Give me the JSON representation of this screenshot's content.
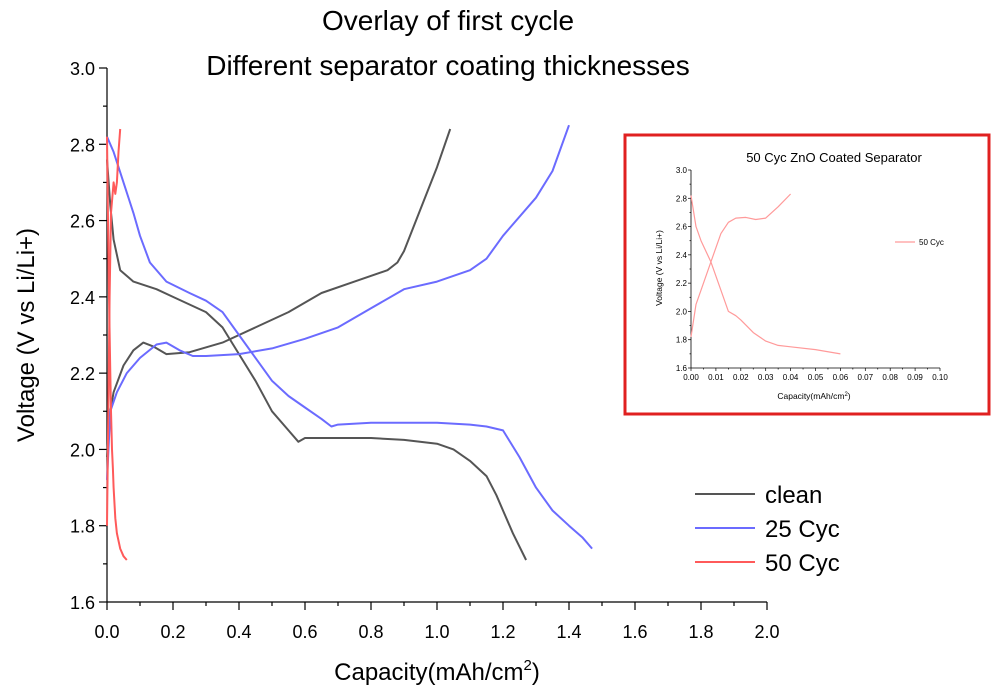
{
  "chart_data": [
    {
      "type": "line",
      "title": "Overlay of first cycle",
      "subtitle": "Different separator coating thicknesses",
      "xlabel": "Capacity(mAh/cm",
      "xlabel_sup": "2",
      "xlabel_end": ")",
      "ylabel": "Voltage (V vs Li/Li+)",
      "xlim": [
        0,
        2.0
      ],
      "ylim": [
        1.6,
        3.0
      ],
      "xticks": [
        "0.0",
        "0.2",
        "0.4",
        "0.6",
        "0.8",
        "1.0",
        "1.2",
        "1.4",
        "1.6",
        "1.8",
        "2.0"
      ],
      "yticks": [
        "1.6",
        "1.8",
        "2.0",
        "2.2",
        "2.4",
        "2.6",
        "2.8",
        "3.0"
      ],
      "legend_position": "bottom-right",
      "series": [
        {
          "name": "clean",
          "color": "#555555",
          "segments": [
            [
              [
                0.0,
                2.76
              ],
              [
                0.01,
                2.64
              ],
              [
                0.02,
                2.55
              ],
              [
                0.04,
                2.47
              ],
              [
                0.08,
                2.44
              ],
              [
                0.15,
                2.42
              ],
              [
                0.2,
                2.4
              ],
              [
                0.3,
                2.36
              ],
              [
                0.35,
                2.32
              ],
              [
                0.4,
                2.25
              ],
              [
                0.45,
                2.18
              ],
              [
                0.5,
                2.1
              ],
              [
                0.55,
                2.05
              ],
              [
                0.58,
                2.02
              ],
              [
                0.6,
                2.03
              ],
              [
                0.7,
                2.03
              ],
              [
                0.8,
                2.03
              ],
              [
                0.9,
                2.025
              ],
              [
                1.0,
                2.015
              ],
              [
                1.05,
                2.0
              ],
              [
                1.1,
                1.97
              ],
              [
                1.15,
                1.93
              ],
              [
                1.18,
                1.88
              ],
              [
                1.2,
                1.84
              ],
              [
                1.23,
                1.78
              ],
              [
                1.27,
                1.71
              ]
            ],
            [
              [
                0.0,
                1.98
              ],
              [
                0.01,
                2.1
              ],
              [
                0.02,
                2.15
              ],
              [
                0.05,
                2.22
              ],
              [
                0.08,
                2.26
              ],
              [
                0.11,
                2.28
              ],
              [
                0.14,
                2.27
              ],
              [
                0.18,
                2.25
              ],
              [
                0.25,
                2.255
              ],
              [
                0.35,
                2.28
              ],
              [
                0.45,
                2.32
              ],
              [
                0.55,
                2.36
              ],
              [
                0.65,
                2.41
              ],
              [
                0.75,
                2.44
              ],
              [
                0.85,
                2.47
              ],
              [
                0.88,
                2.49
              ],
              [
                0.9,
                2.52
              ],
              [
                0.95,
                2.63
              ],
              [
                1.0,
                2.74
              ],
              [
                1.04,
                2.84
              ]
            ]
          ]
        },
        {
          "name": "25 Cyc",
          "color": "#6b6bff",
          "segments": [
            [
              [
                0.0,
                2.82
              ],
              [
                0.02,
                2.78
              ],
              [
                0.05,
                2.7
              ],
              [
                0.08,
                2.62
              ],
              [
                0.1,
                2.56
              ],
              [
                0.13,
                2.49
              ],
              [
                0.18,
                2.44
              ],
              [
                0.25,
                2.41
              ],
              [
                0.3,
                2.39
              ],
              [
                0.35,
                2.36
              ],
              [
                0.4,
                2.3
              ],
              [
                0.45,
                2.24
              ],
              [
                0.5,
                2.18
              ],
              [
                0.55,
                2.14
              ],
              [
                0.6,
                2.11
              ],
              [
                0.65,
                2.08
              ],
              [
                0.68,
                2.06
              ],
              [
                0.7,
                2.065
              ],
              [
                0.8,
                2.07
              ],
              [
                0.9,
                2.07
              ],
              [
                1.0,
                2.07
              ],
              [
                1.1,
                2.065
              ],
              [
                1.15,
                2.06
              ],
              [
                1.2,
                2.05
              ],
              [
                1.25,
                1.98
              ],
              [
                1.3,
                1.9
              ],
              [
                1.35,
                1.84
              ],
              [
                1.4,
                1.8
              ],
              [
                1.44,
                1.77
              ],
              [
                1.47,
                1.74
              ]
            ],
            [
              [
                0.0,
                1.92
              ],
              [
                0.01,
                2.1
              ],
              [
                0.03,
                2.15
              ],
              [
                0.06,
                2.2
              ],
              [
                0.1,
                2.24
              ],
              [
                0.15,
                2.275
              ],
              [
                0.18,
                2.28
              ],
              [
                0.22,
                2.26
              ],
              [
                0.26,
                2.245
              ],
              [
                0.3,
                2.245
              ],
              [
                0.4,
                2.25
              ],
              [
                0.5,
                2.265
              ],
              [
                0.6,
                2.29
              ],
              [
                0.7,
                2.32
              ],
              [
                0.8,
                2.37
              ],
              [
                0.9,
                2.42
              ],
              [
                1.0,
                2.44
              ],
              [
                1.1,
                2.47
              ],
              [
                1.15,
                2.5
              ],
              [
                1.2,
                2.56
              ],
              [
                1.3,
                2.66
              ],
              [
                1.35,
                2.73
              ],
              [
                1.4,
                2.85
              ]
            ]
          ]
        },
        {
          "name": "50 Cyc",
          "color": "#ff5a5a",
          "segments": [
            [
              [
                0.0,
                2.82
              ],
              [
                0.003,
                2.6
              ],
              [
                0.006,
                2.4
              ],
              [
                0.01,
                2.2
              ],
              [
                0.012,
                2.1
              ],
              [
                0.015,
                2.0
              ],
              [
                0.018,
                1.95
              ],
              [
                0.02,
                1.9
              ],
              [
                0.025,
                1.82
              ],
              [
                0.03,
                1.78
              ],
              [
                0.04,
                1.74
              ],
              [
                0.05,
                1.72
              ],
              [
                0.06,
                1.71
              ]
            ],
            [
              [
                0.0,
                1.8
              ],
              [
                0.004,
                2.1
              ],
              [
                0.008,
                2.4
              ],
              [
                0.012,
                2.62
              ],
              [
                0.016,
                2.66
              ],
              [
                0.02,
                2.7
              ],
              [
                0.025,
                2.67
              ],
              [
                0.03,
                2.7
              ],
              [
                0.035,
                2.78
              ],
              [
                0.04,
                2.84
              ]
            ]
          ]
        }
      ]
    },
    {
      "type": "line",
      "title": "50 Cyc ZnO Coated Separator",
      "xlabel": "Capacity(mAh/cm",
      "xlabel_sup": "2",
      "xlabel_end": ")",
      "ylabel": "Voltage (V vs Li/Li+)",
      "xlim": [
        0,
        0.1
      ],
      "ylim": [
        1.6,
        3.0
      ],
      "xticks": [
        "0.00",
        "0.01",
        "0.02",
        "0.03",
        "0.04",
        "0.05",
        "0.06",
        "0.07",
        "0.08",
        "0.09",
        "0.10"
      ],
      "yticks": [
        "1.6",
        "1.8",
        "2.0",
        "2.2",
        "2.4",
        "2.6",
        "2.8",
        "3.0"
      ],
      "legend_position": "right",
      "series": [
        {
          "name": "50 Cyc",
          "color": "#ff9a9a",
          "segments": [
            [
              [
                0.0,
                2.82
              ],
              [
                0.002,
                2.6
              ],
              [
                0.004,
                2.5
              ],
              [
                0.008,
                2.35
              ],
              [
                0.012,
                2.15
              ],
              [
                0.015,
                2.0
              ],
              [
                0.018,
                1.97
              ],
              [
                0.02,
                1.94
              ],
              [
                0.025,
                1.85
              ],
              [
                0.03,
                1.79
              ],
              [
                0.035,
                1.76
              ],
              [
                0.04,
                1.75
              ],
              [
                0.05,
                1.73
              ],
              [
                0.06,
                1.7
              ]
            ],
            [
              [
                0.0,
                1.82
              ],
              [
                0.002,
                2.05
              ],
              [
                0.005,
                2.2
              ],
              [
                0.008,
                2.35
              ],
              [
                0.012,
                2.55
              ],
              [
                0.015,
                2.63
              ],
              [
                0.018,
                2.66
              ],
              [
                0.022,
                2.665
              ],
              [
                0.026,
                2.65
              ],
              [
                0.03,
                2.66
              ],
              [
                0.035,
                2.74
              ],
              [
                0.04,
                2.83
              ]
            ]
          ]
        }
      ]
    }
  ],
  "inset": {
    "border_color": "#e02020"
  }
}
